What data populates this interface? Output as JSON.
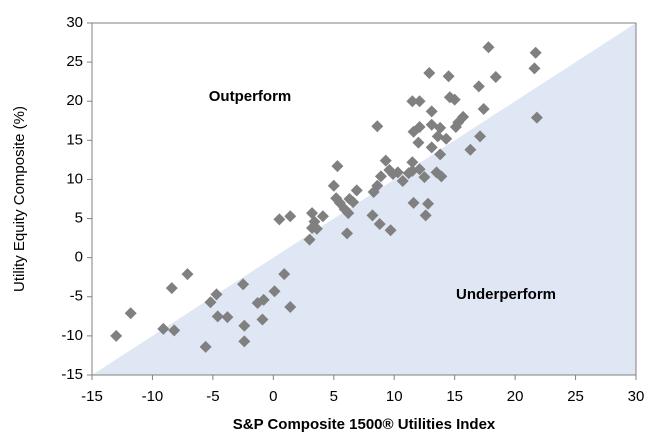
{
  "chart_data": {
    "type": "scatter",
    "xlabel": "S&P Composite 1500® Utilities Index",
    "ylabel": "Utility Equity Composite (%)",
    "annotations": [
      "Outperform",
      "Underperform"
    ],
    "color": "#808080",
    "region_color": "#dfe7f5",
    "xlim": [
      -15,
      30
    ],
    "ylim": [
      -15,
      30
    ],
    "xticks": [
      -15,
      -10,
      -5,
      0,
      5,
      10,
      15,
      20,
      25,
      30
    ],
    "yticks": [
      -15,
      -10,
      -5,
      0,
      5,
      10,
      15,
      20,
      25,
      30
    ],
    "x": [
      -13.0,
      -11.8,
      -9.1,
      -8.2,
      -8.4,
      -7.1,
      -5.6,
      -5.2,
      -4.7,
      -4.6,
      -3.8,
      -2.5,
      -2.4,
      -2.4,
      -1.3,
      -0.9,
      -0.8,
      0.1,
      0.9,
      1.4,
      0.5,
      1.4,
      3.0,
      3.2,
      3.2,
      3.4,
      3.6,
      4.1,
      5.0,
      5.3,
      5.2,
      5.5,
      5.9,
      6.2,
      6.1,
      6.3,
      6.6,
      6.9,
      8.2,
      8.6,
      8.3,
      8.6,
      8.8,
      8.9,
      9.3,
      9.7,
      9.6,
      9.9,
      10.3,
      10.7,
      11.2,
      11.5,
      11.5,
      11.5,
      11.6,
      11.6,
      12.0,
      12.1,
      12.1,
      12.1,
      12.5,
      12.6,
      12.8,
      12.9,
      13.1,
      13.1,
      13.1,
      13.5,
      13.6,
      13.8,
      13.8,
      13.9,
      14.3,
      14.5,
      14.6,
      15.0,
      15.1,
      15.3,
      15.7,
      16.3,
      17.0,
      17.1,
      17.4,
      17.8,
      18.4,
      21.7,
      21.6,
      21.8
    ],
    "values": [
      -10.0,
      -7.1,
      -9.1,
      -9.3,
      -3.9,
      -2.1,
      -11.4,
      -5.7,
      -4.7,
      -7.5,
      -7.6,
      -3.4,
      -8.7,
      -10.7,
      -5.8,
      -7.9,
      -5.4,
      -4.3,
      -2.1,
      -6.3,
      4.9,
      5.3,
      2.3,
      5.7,
      3.8,
      4.6,
      3.7,
      5.3,
      9.2,
      11.7,
      7.6,
      7.0,
      6.2,
      5.7,
      3.1,
      7.5,
      7.1,
      8.6,
      5.4,
      16.8,
      8.4,
      9.2,
      4.3,
      10.4,
      12.4,
      3.5,
      11.2,
      10.7,
      10.9,
      9.8,
      10.8,
      11.1,
      12.2,
      20.0,
      16.1,
      7.0,
      14.7,
      20.0,
      16.7,
      11.3,
      10.3,
      5.4,
      6.9,
      23.6,
      14.1,
      17.0,
      18.7,
      10.9,
      15.5,
      13.2,
      16.6,
      10.4,
      15.2,
      23.2,
      20.5,
      20.2,
      16.7,
      17.3,
      18.0,
      13.8,
      21.9,
      15.5,
      19.0,
      26.9,
      23.1,
      26.2,
      24.2,
      17.9
    ]
  }
}
